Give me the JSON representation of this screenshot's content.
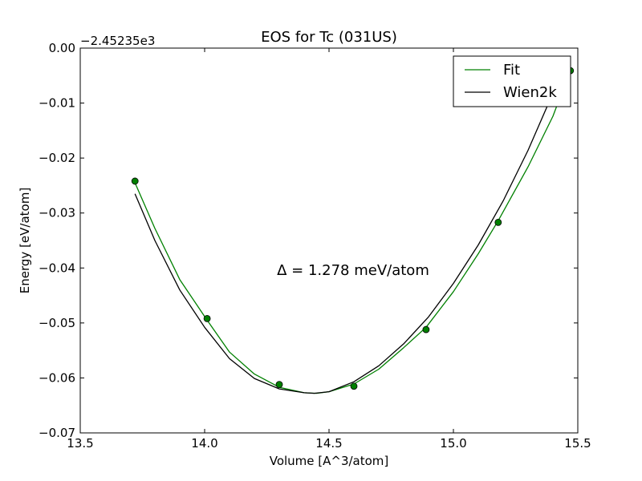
{
  "chart_data": {
    "type": "line",
    "title": "EOS for Tc (031US)",
    "xlabel": "Volume [A^3/atom]",
    "ylabel": "Energy [eV/atom]",
    "offset_label": "−2.45235e3",
    "annotation": "Δ = 1.278 meV/atom",
    "xlim": [
      13.5,
      15.5
    ],
    "ylim": [
      -0.07,
      0.0
    ],
    "x_ticks": [
      13.5,
      14.0,
      14.5,
      15.0,
      15.5
    ],
    "x_tick_labels": [
      "13.5",
      "14.0",
      "14.5",
      "15.0",
      "15.5"
    ],
    "y_ticks": [
      0.0,
      -0.01,
      -0.02,
      -0.03,
      -0.04,
      -0.05,
      -0.06,
      -0.07
    ],
    "y_tick_labels": [
      "0.00",
      "−0.01",
      "−0.02",
      "−0.03",
      "−0.04",
      "−0.05",
      "−0.06",
      "−0.07"
    ],
    "legend": {
      "placement": "top-right",
      "entries": [
        "Fit",
        "Wien2k"
      ]
    },
    "series": [
      {
        "name": "Fit",
        "color": "#008000",
        "kind": "line",
        "x": [
          13.72,
          13.8,
          13.9,
          14.01,
          14.1,
          14.2,
          14.3,
          14.4,
          14.45,
          14.5,
          14.6,
          14.7,
          14.8,
          14.89,
          15.0,
          15.1,
          15.18,
          15.3,
          15.4,
          15.47
        ],
        "y": [
          -0.0245,
          -0.0328,
          -0.0421,
          -0.0495,
          -0.0553,
          -0.0593,
          -0.0617,
          -0.0627,
          -0.0628,
          -0.0625,
          -0.0611,
          -0.0584,
          -0.0545,
          -0.0508,
          -0.0443,
          -0.0374,
          -0.0314,
          -0.0216,
          -0.0124,
          -0.004
        ]
      },
      {
        "name": "Wien2k",
        "color": "#000000",
        "kind": "line",
        "x": [
          13.72,
          13.8,
          13.9,
          14.0,
          14.1,
          14.2,
          14.3,
          14.4,
          14.44,
          14.5,
          14.6,
          14.7,
          14.8,
          14.9,
          15.0,
          15.1,
          15.2,
          15.3,
          15.4,
          15.45
        ],
        "y": [
          -0.0265,
          -0.035,
          -0.044,
          -0.0508,
          -0.0565,
          -0.0601,
          -0.062,
          -0.0627,
          -0.0628,
          -0.0625,
          -0.0607,
          -0.0578,
          -0.0538,
          -0.0489,
          -0.0428,
          -0.0358,
          -0.0278,
          -0.0186,
          -0.0082,
          -0.0022
        ]
      },
      {
        "name": "",
        "color": "#008000",
        "kind": "points",
        "x": [
          13.72,
          14.01,
          14.3,
          14.6,
          14.89,
          15.18,
          15.47
        ],
        "y": [
          -0.0242,
          -0.0492,
          -0.0612,
          -0.0615,
          -0.0512,
          -0.0317,
          -0.0041
        ]
      }
    ]
  }
}
